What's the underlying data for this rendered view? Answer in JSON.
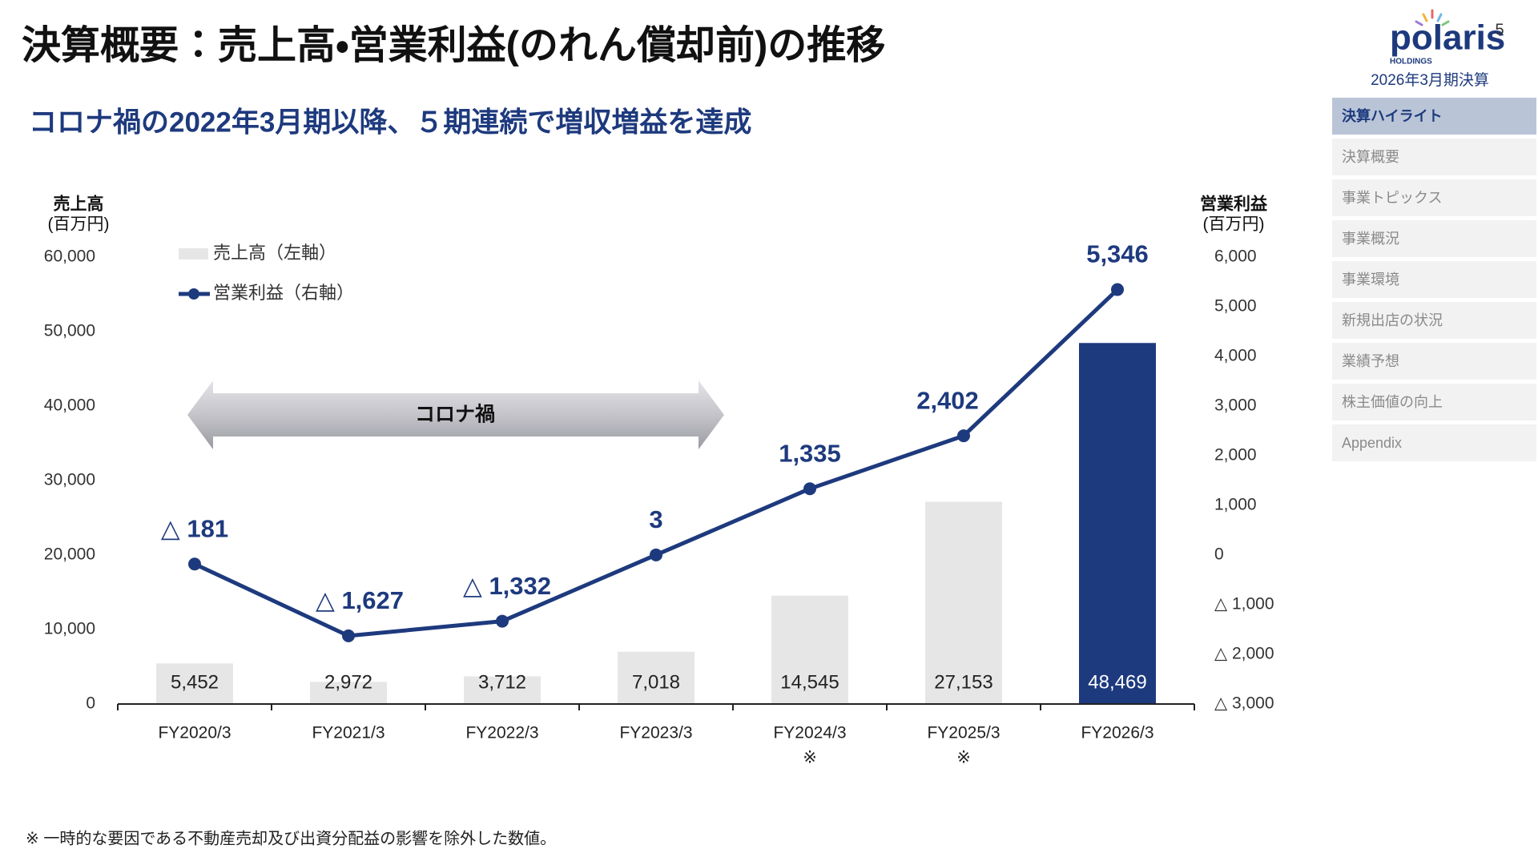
{
  "header": {
    "title": "決算概要：売上高・営業利益(のれん償却前)の推移",
    "subtitle": "コロナ禍の2022年3月期以降、５期連続で増収増益を達成",
    "logo": "polaris",
    "logo_sub": "HOLDINGS",
    "period": "2026年3月期決算",
    "page": "5"
  },
  "nav": {
    "items": [
      "決算ハイライト",
      "決算概要",
      "事業トピックス",
      "事業概況",
      "事業環境",
      "新規出店の状況",
      "業績予想",
      "株主価値の向上",
      "Appendix"
    ],
    "active": 0
  },
  "chart_data": {
    "type": "combo",
    "categories": [
      "FY2020/3",
      "FY2021/3",
      "FY2022/3",
      "FY2023/3",
      "FY2024/3",
      "FY2025/3",
      "FY2026/3"
    ],
    "category_notes": [
      null,
      null,
      null,
      null,
      "※",
      "※",
      null
    ],
    "series": [
      {
        "name": "売上高（左軸）",
        "type": "bar",
        "color": "#e6e6e6",
        "colors": [
          "#e6e6e6",
          "#e6e6e6",
          "#e6e6e6",
          "#e6e6e6",
          "#e6e6e6",
          "#e6e6e6",
          "#1e3a7e"
        ],
        "values": [
          5452,
          2972,
          3712,
          7018,
          14545,
          27153,
          48469
        ],
        "value_labels": [
          "5,452",
          "2,972",
          "3,712",
          "7,018",
          "14,545",
          "27,153",
          "48,469"
        ]
      },
      {
        "name": "営業利益（右軸）",
        "type": "line",
        "axis": "y2",
        "color": "#1e3a7e",
        "values": [
          -181,
          -1627,
          -1332,
          3,
          1335,
          2402,
          5346
        ],
        "value_labels": [
          "△ 181",
          "△ 1,627",
          "△ 1,332",
          "3",
          "1,335",
          "2,402",
          "5,346"
        ]
      }
    ],
    "y_label": "売上高",
    "y_unit": "(百万円)",
    "y2_label": "営業利益",
    "y2_unit": "(百万円)",
    "ylim": [
      0,
      60000
    ],
    "yticks": [
      0,
      {
        "value": 10000,
        "label": "10,000"
      },
      {
        "value": 20000,
        "label": "20,000"
      },
      {
        "value": 30000,
        "label": "30,000"
      },
      {
        "value": 40000,
        "label": "40,000"
      },
      {
        "value": 50000,
        "label": "50,000"
      },
      {
        "value": 60000,
        "label": "60,000"
      }
    ],
    "y2lim": [
      -3000,
      6000
    ],
    "y2ticks": [
      {
        "value": -3000,
        "label": "△ 3,000"
      },
      {
        "value": -2000,
        "label": "△ 2,000"
      },
      {
        "value": -1000,
        "label": "△ 1,000"
      },
      0,
      {
        "value": 1000,
        "label": "1,000"
      },
      {
        "value": 2000,
        "label": "2,000"
      },
      {
        "value": 3000,
        "label": "3,000"
      },
      {
        "value": 4000,
        "label": "4,000"
      },
      {
        "value": 5000,
        "label": "5,000"
      },
      {
        "value": 6000,
        "label": "6,000"
      }
    ],
    "annotation": "コロナ禍"
  },
  "footnote": "※ 一時的な要因である不動産売却及び出資分配益の影響を除外した数値。"
}
